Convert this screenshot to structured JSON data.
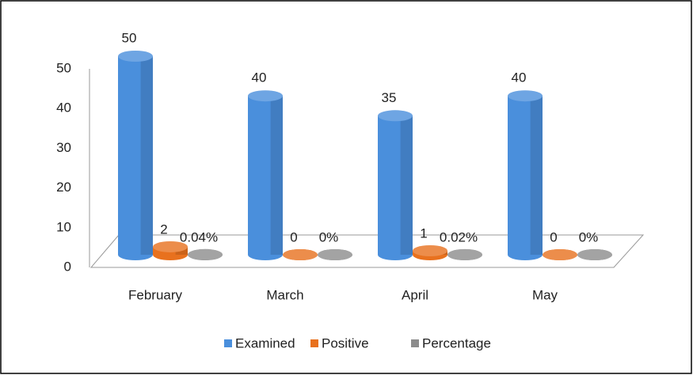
{
  "chart_data": {
    "type": "bar3d",
    "categories": [
      "February",
      "March",
      "April",
      "May"
    ],
    "series": [
      {
        "name": "Examined",
        "color": "#4a8fdc",
        "values": [
          50,
          40,
          35,
          40
        ]
      },
      {
        "name": "Positive",
        "color": "#e8711e",
        "values": [
          2,
          0,
          1,
          0
        ]
      },
      {
        "name": "Percentage",
        "color": "#8c8c8c",
        "values": [
          0.04,
          0,
          0.02,
          0
        ],
        "value_labels": [
          "0.04%",
          "0%",
          "0.02%",
          "0%"
        ]
      }
    ],
    "ylim": [
      0,
      50
    ],
    "yticks": [
      0,
      10,
      20,
      30,
      40,
      50
    ],
    "grid": false,
    "legend": "bottom"
  }
}
